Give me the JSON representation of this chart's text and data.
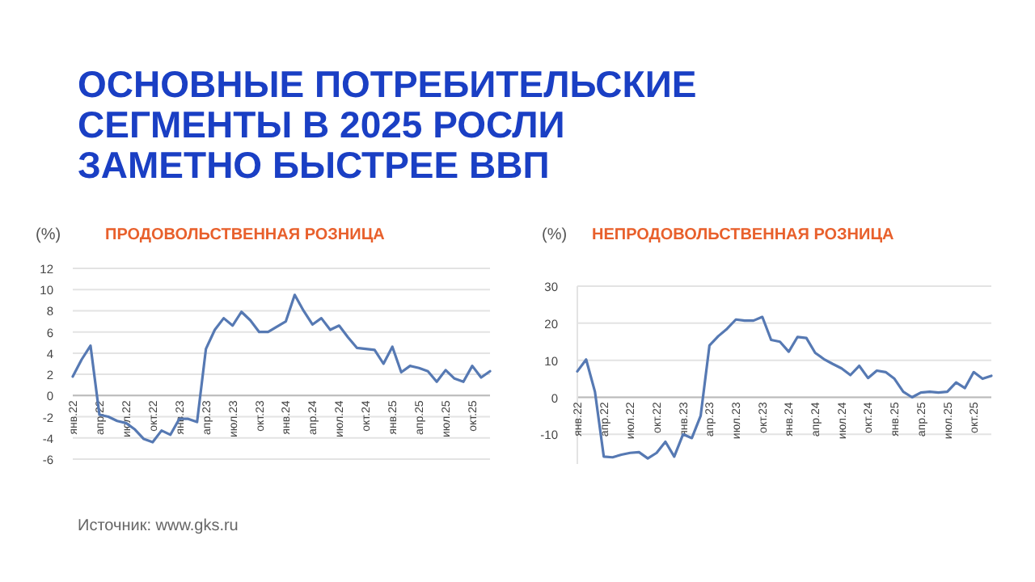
{
  "chart_data": [
    {
      "type": "other",
      "title": "ОСНОВНЫЕ ПОТРЕБИТЕЛЬСКИЕ СЕГМЕНТЫ В 2025 РОСЛИ ЗАМЕТНО БЫСТРЕЕ ВВП",
      "annotations": [
        "Источник: www.gks.ru"
      ]
    },
    {
      "type": "line",
      "title": "ПРОДОВОЛЬСТВЕННАЯ РОЗНИЦА",
      "ylabel": "(%)",
      "categories": [
        "янв.22",
        null,
        null,
        "апр.22",
        null,
        null,
        "июл.22",
        null,
        null,
        "окт.22",
        null,
        null,
        "янв.23",
        null,
        null,
        "апр.23",
        null,
        null,
        "июл.23",
        null,
        null,
        "окт.23",
        null,
        null,
        "янв.24",
        null,
        null,
        "апр.24",
        null,
        null,
        "июл.24",
        null,
        null,
        "окт.24",
        null,
        null,
        "янв.25",
        null,
        null,
        "апр.25",
        null,
        null,
        "июл.25",
        null,
        null,
        "окт.25",
        null,
        null
      ],
      "series": [
        {
          "color": "#5679b3",
          "values": [
            1.8,
            3.4,
            4.7,
            -1.8,
            -2.0,
            -2.4,
            -2.6,
            -3.2,
            -4.1,
            -4.4,
            -3.3,
            -3.7,
            -2.2,
            -2.2,
            -2.5,
            4.4,
            6.2,
            7.3,
            6.6,
            7.9,
            7.1,
            6.0,
            6.0,
            6.5,
            7.0,
            9.5,
            8.0,
            6.7,
            7.3,
            6.2,
            6.6,
            5.5,
            4.5,
            4.4,
            4.3,
            3.0,
            4.6,
            2.2,
            2.8,
            2.6,
            2.3,
            1.3,
            2.4,
            1.6,
            1.3,
            2.8,
            1.7,
            2.3
          ]
        }
      ],
      "ylim": [
        -6,
        12
      ],
      "yticks": [
        -6,
        -4,
        -2,
        0,
        2,
        4,
        6,
        8,
        10,
        12
      ],
      "grid": "y"
    },
    {
      "type": "line",
      "title": "НЕПРОДОВОЛЬСТВЕННАЯ РОЗНИЦА",
      "ylabel": "(%)",
      "categories": [
        "янв.22",
        null,
        null,
        "апр.22",
        null,
        null,
        "июл.22",
        null,
        null,
        "окт.22",
        null,
        null,
        "янв.23",
        null,
        null,
        "апр.23",
        null,
        null,
        "июл.23",
        null,
        null,
        "окт.23",
        null,
        null,
        "янв.24",
        null,
        null,
        "апр.24",
        null,
        null,
        "июл.24",
        null,
        null,
        "окт.24",
        null,
        null,
        "янв.25",
        null,
        null,
        "апр.25",
        null,
        null,
        "июл.25",
        null,
        null,
        "окт.25",
        null,
        null
      ],
      "series": [
        {
          "color": "#5679b3",
          "values": [
            7,
            10.2,
            1.5,
            -16,
            -16.2,
            -15.5,
            -15,
            -14.8,
            -16.5,
            -15,
            -12,
            -16,
            -10,
            -11,
            -5,
            14,
            16.5,
            18.5,
            21,
            20.7,
            20.7,
            21.7,
            15.5,
            15,
            12.3,
            16.3,
            16,
            12,
            10.3,
            9,
            7.8,
            6,
            8.5,
            5.2,
            7.2,
            6.8,
            5,
            1.5,
            0,
            1.3,
            1.5,
            1.3,
            1.5,
            4,
            2.5,
            6.8,
            5,
            5.8
          ]
        }
      ],
      "ylim": [
        -18,
        30
      ],
      "yticks": [
        -10,
        0,
        10,
        20,
        30
      ],
      "grid": "y"
    }
  ]
}
